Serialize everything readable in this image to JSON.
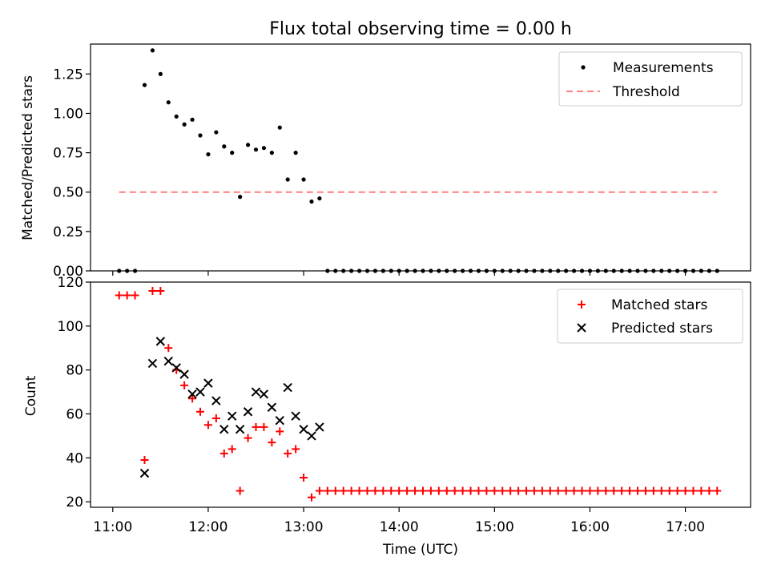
{
  "chart_data": [
    {
      "type": "scatter",
      "title": "Flux total observing time = 0.00 h",
      "xlabel": "",
      "ylabel": "Matched/Predicted stars",
      "ylim": [
        0,
        1.44
      ],
      "yticks": [
        0.0,
        0.25,
        0.5,
        0.75,
        1.0,
        1.25
      ],
      "ytick_labels": [
        "0.00",
        "0.25",
        "0.50",
        "0.75",
        "1.00",
        "1.25"
      ],
      "legend_position": "top-right",
      "series": [
        {
          "name": "Measurements",
          "marker": "dot",
          "color": "#000000",
          "x": [
            "11:04",
            "11:09",
            "11:14",
            "11:20",
            "11:25",
            "11:30",
            "11:35",
            "11:40",
            "11:45",
            "11:50",
            "11:55",
            "12:00",
            "12:05",
            "12:10",
            "12:15",
            "12:20",
            "12:25",
            "12:30",
            "12:35",
            "12:40",
            "12:45",
            "12:50",
            "12:55",
            "13:00",
            "13:05",
            "13:10",
            "13:15",
            "13:20",
            "13:25",
            "13:30",
            "13:35",
            "13:40",
            "13:45",
            "13:50",
            "13:55",
            "14:00",
            "14:05",
            "14:10",
            "14:15",
            "14:20",
            "14:25",
            "14:30",
            "14:35",
            "14:40",
            "14:45",
            "14:50",
            "14:55",
            "15:00",
            "15:05",
            "15:10",
            "15:15",
            "15:20",
            "15:25",
            "15:30",
            "15:35",
            "15:40",
            "15:45",
            "15:50",
            "15:55",
            "16:00",
            "16:05",
            "16:10",
            "16:15",
            "16:20",
            "16:25",
            "16:30",
            "16:35",
            "16:40",
            "16:45",
            "16:50",
            "16:55",
            "17:00",
            "17:05",
            "17:10",
            "17:15",
            "17:20"
          ],
          "y": [
            0.0,
            0.0,
            0.0,
            1.18,
            1.4,
            1.25,
            1.07,
            0.98,
            0.93,
            0.96,
            0.86,
            0.74,
            0.88,
            0.79,
            0.75,
            0.47,
            0.8,
            0.77,
            0.78,
            0.75,
            0.91,
            0.58,
            0.75,
            0.58,
            0.44,
            0.46,
            0.0,
            0.0,
            0.0,
            0.0,
            0.0,
            0.0,
            0.0,
            0.0,
            0.0,
            0.0,
            0.0,
            0.0,
            0.0,
            0.0,
            0.0,
            0.0,
            0.0,
            0.0,
            0.0,
            0.0,
            0.0,
            0.0,
            0.0,
            0.0,
            0.0,
            0.0,
            0.0,
            0.0,
            0.0,
            0.0,
            0.0,
            0.0,
            0.0,
            0.0,
            0.0,
            0.0,
            0.0,
            0.0,
            0.0,
            0.0,
            0.0,
            0.0,
            0.0,
            0.0,
            0.0,
            0.0,
            0.0,
            0.0,
            0.0,
            0.0
          ]
        },
        {
          "name": "Threshold",
          "style": "dashed",
          "color": "#ff7f7f",
          "x": [
            "11:04",
            "17:20"
          ],
          "y": [
            0.5,
            0.5
          ]
        }
      ]
    },
    {
      "type": "scatter",
      "title": "",
      "xlabel": "Time (UTC)",
      "ylabel": "Count",
      "ylim": [
        17.5,
        120
      ],
      "yticks": [
        20,
        40,
        60,
        80,
        100,
        120
      ],
      "ytick_labels": [
        "20",
        "40",
        "60",
        "80",
        "100",
        "120"
      ],
      "xlim": [
        "10:46",
        "17:41"
      ],
      "xticks": [
        "11:00",
        "12:00",
        "13:00",
        "14:00",
        "15:00",
        "16:00",
        "17:00"
      ],
      "xtick_labels": [
        "11:00",
        "12:00",
        "13:00",
        "14:00",
        "15:00",
        "16:00",
        "17:00"
      ],
      "legend_position": "top-right",
      "series": [
        {
          "name": "Matched stars",
          "marker": "plus",
          "color": "#ff0000",
          "x": [
            "11:04",
            "11:09",
            "11:14",
            "11:20",
            "11:25",
            "11:30",
            "11:35",
            "11:40",
            "11:45",
            "11:50",
            "11:55",
            "12:00",
            "12:05",
            "12:10",
            "12:15",
            "12:20",
            "12:25",
            "12:30",
            "12:35",
            "12:40",
            "12:45",
            "12:50",
            "12:55",
            "13:00",
            "13:05",
            "13:10",
            "13:15",
            "13:20",
            "13:25",
            "13:30",
            "13:35",
            "13:40",
            "13:45",
            "13:50",
            "13:55",
            "14:00",
            "14:05",
            "14:10",
            "14:15",
            "14:20",
            "14:25",
            "14:30",
            "14:35",
            "14:40",
            "14:45",
            "14:50",
            "14:55",
            "15:00",
            "15:05",
            "15:10",
            "15:15",
            "15:20",
            "15:25",
            "15:30",
            "15:35",
            "15:40",
            "15:45",
            "15:50",
            "15:55",
            "16:00",
            "16:05",
            "16:10",
            "16:15",
            "16:20",
            "16:25",
            "16:30",
            "16:35",
            "16:40",
            "16:45",
            "16:50",
            "16:55",
            "17:00",
            "17:05",
            "17:10",
            "17:15",
            "17:20"
          ],
          "y": [
            114,
            114,
            114,
            39,
            116,
            116,
            90,
            80,
            73,
            67,
            61,
            55,
            58,
            42,
            44,
            25,
            49,
            54,
            54,
            47,
            52,
            42,
            44,
            31,
            22,
            25,
            25,
            25,
            25,
            25,
            25,
            25,
            25,
            25,
            25,
            25,
            25,
            25,
            25,
            25,
            25,
            25,
            25,
            25,
            25,
            25,
            25,
            25,
            25,
            25,
            25,
            25,
            25,
            25,
            25,
            25,
            25,
            25,
            25,
            25,
            25,
            25,
            25,
            25,
            25,
            25,
            25,
            25,
            25,
            25,
            25,
            25,
            25,
            25,
            25,
            25
          ]
        },
        {
          "name": "Predicted stars",
          "marker": "x",
          "color": "#000000",
          "x": [
            "11:20",
            "11:25",
            "11:30",
            "11:35",
            "11:40",
            "11:45",
            "11:50",
            "11:55",
            "12:00",
            "12:05",
            "12:10",
            "12:15",
            "12:20",
            "12:25",
            "12:30",
            "12:35",
            "12:40",
            "12:45",
            "12:50",
            "12:55",
            "13:00",
            "13:05",
            "13:10"
          ],
          "y": [
            33,
            83,
            93,
            84,
            81,
            78,
            69,
            70,
            74,
            66,
            53,
            59,
            53,
            61,
            70,
            69,
            63,
            57,
            72,
            59,
            53,
            50,
            54
          ]
        }
      ]
    }
  ]
}
